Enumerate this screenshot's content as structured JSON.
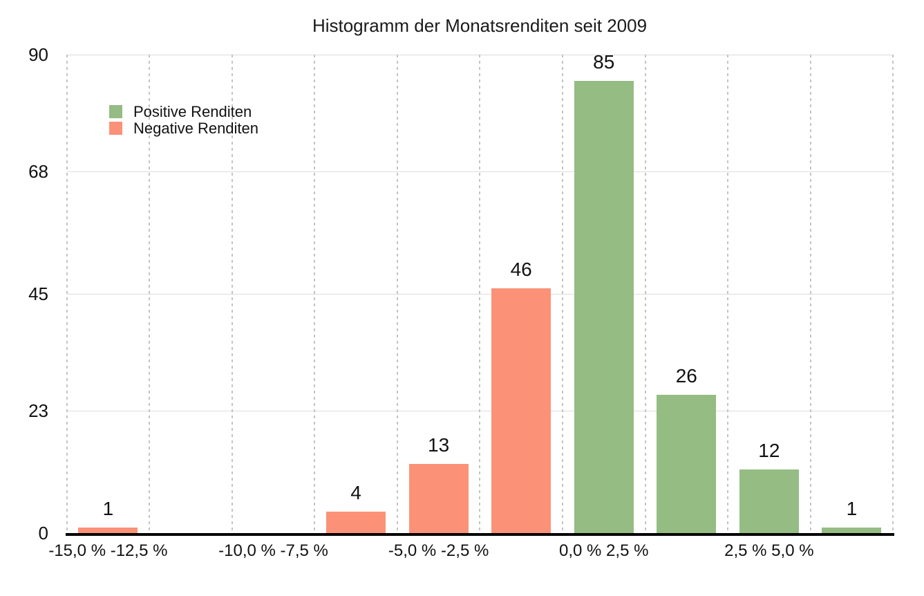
{
  "chart_data": {
    "type": "bar",
    "title": "Histogramm der Monatsrenditen seit 2009",
    "ylim": [
      0,
      90
    ],
    "y_ticks": [
      0,
      23,
      45,
      68,
      90
    ],
    "bins": [
      {
        "value": 1,
        "label": "1",
        "series": "negative"
      },
      {
        "value": 0,
        "label": "",
        "series": "negative"
      },
      {
        "value": 0,
        "label": "",
        "series": "negative"
      },
      {
        "value": 4,
        "label": "4",
        "series": "negative"
      },
      {
        "value": 13,
        "label": "13",
        "series": "negative"
      },
      {
        "value": 46,
        "label": "46",
        "series": "negative"
      },
      {
        "value": 85,
        "label": "85",
        "series": "positive"
      },
      {
        "value": 26,
        "label": "26",
        "series": "positive"
      },
      {
        "value": 12,
        "label": "12",
        "series": "positive"
      },
      {
        "value": 1,
        "label": "1",
        "series": "positive"
      }
    ],
    "x_tick_labels": [
      {
        "text": "-15,0 % -12,5 %",
        "bin_index": 0
      },
      {
        "text": "-10,0 % -7,5 %",
        "bin_index": 2
      },
      {
        "text": "-5,0 % -2,5 %",
        "bin_index": 4
      },
      {
        "text": "0,0 % 2,5 %",
        "bin_index": 6
      },
      {
        "text": "2,5 % 5,0 %",
        "bin_index": 8
      }
    ],
    "legend": [
      {
        "label": "Positive Renditen",
        "series": "positive"
      },
      {
        "label": "Negative Renditen",
        "series": "negative"
      }
    ],
    "colors": {
      "positive": "#95BC83",
      "negative": "#FB9278"
    },
    "grid": {
      "horizontal": "solid",
      "vertical": "dashed",
      "legend_position": "top-left"
    }
  }
}
